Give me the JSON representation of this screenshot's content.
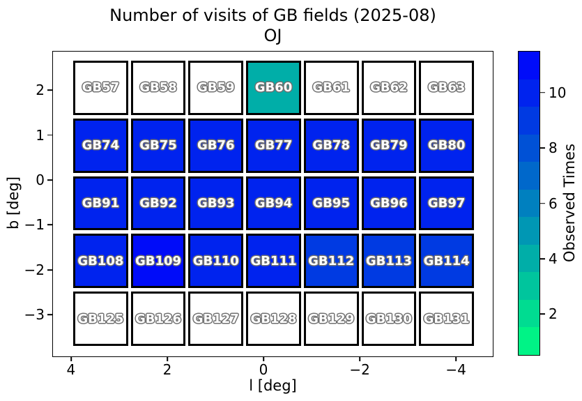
{
  "chart_data": {
    "type": "heatmap",
    "title": "Number of visits of GB fields (2025-08)",
    "subtitle": "OJ",
    "xlabel": "l [deg]",
    "ylabel": "b [deg]",
    "xlim": [
      4.39,
      -4.78
    ],
    "ylim": [
      -3.94,
      2.87
    ],
    "x_ticks": [
      4,
      2,
      0,
      -2,
      -4
    ],
    "y_ticks": [
      2,
      1,
      0,
      -1,
      -2,
      -3
    ],
    "grid_lines": false,
    "legend": "none",
    "colorbar": {
      "label": "Observed Times",
      "ticks": [
        10,
        8,
        6,
        4,
        2
      ],
      "range": [
        0.5,
        11.5
      ],
      "levels": 11,
      "colormap": "winter_r",
      "segment_colors_top_to_bottom": [
        "#000cf9",
        "#0023ee",
        "#003ae2",
        "#0051d6",
        "#0068cb",
        "#0080bf",
        "#0097b4",
        "#00aea8",
        "#00c59d",
        "#00dc91",
        "#00f386"
      ]
    },
    "value_colors": {
      "11": "#000cf9",
      "10": "#0023ee",
      "9": "#003ae2",
      "4": "#00aea8",
      "none": "#ffffff"
    },
    "cell_label_color": "#ffffff",
    "cell_label_outline_color": "#707070",
    "rows": [
      {
        "fields": [
          "GB57",
          "GB58",
          "GB59",
          "GB60",
          "GB61",
          "GB62",
          "GB63"
        ],
        "values": [
          null,
          null,
          null,
          4,
          null,
          null,
          null
        ]
      },
      {
        "fields": [
          "GB74",
          "GB75",
          "GB76",
          "GB77",
          "GB78",
          "GB79",
          "GB80"
        ],
        "values": [
          10,
          10,
          10,
          10,
          10,
          10,
          10
        ]
      },
      {
        "fields": [
          "GB91",
          "GB92",
          "GB93",
          "GB94",
          "GB95",
          "GB96",
          "GB97"
        ],
        "values": [
          10,
          10,
          10,
          10,
          10,
          10,
          10
        ]
      },
      {
        "fields": [
          "GB108",
          "GB109",
          "GB110",
          "GB111",
          "GB112",
          "GB113",
          "GB114"
        ],
        "values": [
          10,
          11,
          10,
          10,
          9,
          9,
          9
        ]
      },
      {
        "fields": [
          "GB125",
          "GB126",
          "GB127",
          "GB128",
          "GB129",
          "GB130",
          "GB131"
        ],
        "values": [
          null,
          null,
          null,
          null,
          null,
          null,
          null
        ]
      }
    ]
  }
}
